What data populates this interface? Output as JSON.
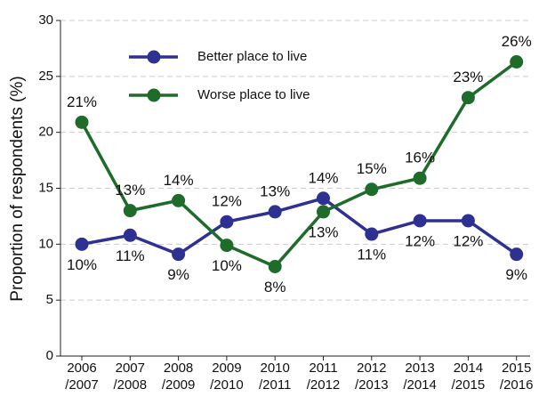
{
  "chart_data": {
    "type": "line",
    "ylabel": "Proportion of respondents (%)",
    "categories": [
      "2006\n/2007",
      "2007\n/2008",
      "2008\n/2009",
      "2009\n/2010",
      "2010\n/2011",
      "2011\n/2012",
      "2012\n/2013",
      "2013\n/2014",
      "2014\n/2015",
      "2015\n/2016"
    ],
    "series": [
      {
        "name": "Better place to live",
        "color": "#2e3192",
        "values": [
          10,
          10.8,
          9.1,
          12,
          12.9,
          14.1,
          10.9,
          12.1,
          12.1,
          9.1
        ],
        "value_labels": [
          "10%",
          "11%",
          "9%",
          "12%",
          "13%",
          "14%",
          "11%",
          "12%",
          "12%",
          "9%"
        ]
      },
      {
        "name": "Worse place to live",
        "color": "#1e6b2a",
        "values": [
          20.9,
          13,
          13.9,
          9.9,
          8,
          12.9,
          14.9,
          15.9,
          23.1,
          26.3
        ],
        "value_labels": [
          "21%",
          "13%",
          "14%",
          "10%",
          "8%",
          "13%",
          "15%",
          "16%",
          "23%",
          "26%"
        ]
      }
    ],
    "ylim": [
      0,
      30
    ],
    "yticks": [
      0,
      5,
      10,
      15,
      20,
      25,
      30
    ],
    "grid": true
  }
}
